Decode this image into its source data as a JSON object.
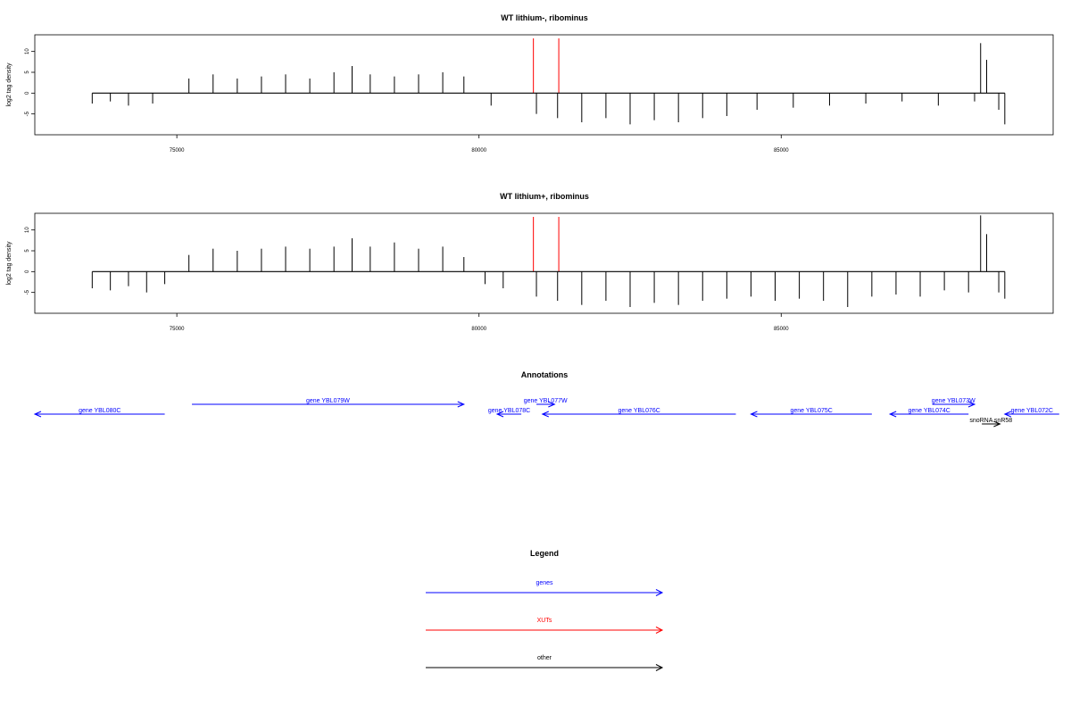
{
  "chart_data": [
    {
      "type": "bar",
      "title": "WT lithium-, ribominus",
      "xlabel": "",
      "ylabel": "log2 tag density",
      "xlim": [
        72650,
        89500
      ],
      "ylim": [
        -10,
        14
      ],
      "xticks": [
        75000,
        80000,
        85000
      ],
      "yticks": [
        -5,
        0,
        5,
        10
      ],
      "grid": false,
      "markers": [
        80900,
        81320
      ],
      "series": [
        {
          "values": [
            [
              73600,
              -2.5
            ],
            [
              73900,
              -2
            ],
            [
              74200,
              -3
            ],
            [
              74600,
              -2.5
            ],
            [
              75200,
              3.5
            ],
            [
              75600,
              4.5
            ],
            [
              76000,
              3.5
            ],
            [
              76400,
              4
            ],
            [
              76800,
              4.5
            ],
            [
              77200,
              3.5
            ],
            [
              77600,
              5
            ],
            [
              77900,
              6.5
            ],
            [
              78200,
              4.5
            ],
            [
              78600,
              4
            ],
            [
              79000,
              4.5
            ],
            [
              79400,
              5
            ],
            [
              79750,
              4
            ],
            [
              80200,
              -3
            ],
            [
              80950,
              -5
            ],
            [
              81300,
              -6
            ],
            [
              81700,
              -7
            ],
            [
              82100,
              -6
            ],
            [
              82500,
              -7.5
            ],
            [
              82900,
              -6.5
            ],
            [
              83300,
              -7
            ],
            [
              83700,
              -6
            ],
            [
              84100,
              -5.5
            ],
            [
              84600,
              -4
            ],
            [
              85200,
              -3.5
            ],
            [
              85800,
              -3
            ],
            [
              86400,
              -2.5
            ],
            [
              87000,
              -2
            ],
            [
              87600,
              -3
            ],
            [
              88200,
              -2
            ],
            [
              88300,
              12
            ],
            [
              88400,
              8
            ],
            [
              88600,
              -4
            ],
            [
              88700,
              -7.5
            ]
          ]
        }
      ]
    },
    {
      "type": "bar",
      "title": "WT lithium+, ribominus",
      "xlabel": "",
      "ylabel": "log2 tag density",
      "xlim": [
        72650,
        89500
      ],
      "ylim": [
        -10,
        14
      ],
      "xticks": [
        75000,
        80000,
        85000
      ],
      "yticks": [
        -5,
        0,
        5,
        10
      ],
      "grid": false,
      "markers": [
        80900,
        81320
      ],
      "series": [
        {
          "values": [
            [
              73600,
              -4
            ],
            [
              73900,
              -4.5
            ],
            [
              74200,
              -3.5
            ],
            [
              74500,
              -5
            ],
            [
              74800,
              -3
            ],
            [
              75200,
              4
            ],
            [
              75600,
              5.5
            ],
            [
              76000,
              5
            ],
            [
              76400,
              5.5
            ],
            [
              76800,
              6
            ],
            [
              77200,
              5.5
            ],
            [
              77600,
              6
            ],
            [
              77900,
              8
            ],
            [
              78200,
              6
            ],
            [
              78600,
              7
            ],
            [
              79000,
              5.5
            ],
            [
              79400,
              6
            ],
            [
              79750,
              3.5
            ],
            [
              80100,
              -3
            ],
            [
              80400,
              -4
            ],
            [
              80950,
              -6
            ],
            [
              81300,
              -7
            ],
            [
              81700,
              -8
            ],
            [
              82100,
              -7
            ],
            [
              82500,
              -8.5
            ],
            [
              82900,
              -7.5
            ],
            [
              83300,
              -8
            ],
            [
              83700,
              -7
            ],
            [
              84100,
              -6.5
            ],
            [
              84500,
              -6
            ],
            [
              84900,
              -7
            ],
            [
              85300,
              -6.5
            ],
            [
              85700,
              -7
            ],
            [
              86100,
              -8.5
            ],
            [
              86500,
              -6
            ],
            [
              86900,
              -5.5
            ],
            [
              87300,
              -6
            ],
            [
              87700,
              -4.5
            ],
            [
              88100,
              -5
            ],
            [
              88300,
              13.5
            ],
            [
              88400,
              9
            ],
            [
              88600,
              -5
            ],
            [
              88700,
              -6.5
            ]
          ]
        }
      ]
    }
  ],
  "annotations": {
    "title": "Annotations",
    "features": [
      {
        "label": "gene YBL080C",
        "start": 72650,
        "end": 74800,
        "strand": "-",
        "row": 1,
        "kind": "genes"
      },
      {
        "label": "gene YBL079W",
        "start": 75250,
        "end": 79750,
        "strand": "+",
        "row": 0,
        "kind": "genes"
      },
      {
        "label": "gene YBL078C",
        "start": 80300,
        "end": 80700,
        "strand": "-",
        "row": 1,
        "kind": "genes"
      },
      {
        "label": "gene YBL077W",
        "start": 80950,
        "end": 81250,
        "strand": "+",
        "row": 0,
        "kind": "genes"
      },
      {
        "label": "gene YBL076C",
        "start": 81050,
        "end": 84250,
        "strand": "-",
        "row": 1,
        "kind": "genes"
      },
      {
        "label": "gene YBL075C",
        "start": 84500,
        "end": 86500,
        "strand": "-",
        "row": 1,
        "kind": "genes"
      },
      {
        "label": "gene YBL074C",
        "start": 86800,
        "end": 88100,
        "strand": "-",
        "row": 1,
        "kind": "genes"
      },
      {
        "label": "gene YBL073W",
        "start": 87500,
        "end": 88200,
        "strand": "+",
        "row": 0,
        "kind": "genes"
      },
      {
        "label": "gene YBL072C",
        "start": 88700,
        "end": 89600,
        "strand": "-",
        "row": 1,
        "kind": "genes"
      },
      {
        "label": "snoRNA snR58",
        "start": 88320,
        "end": 88620,
        "strand": "+",
        "row": 2,
        "kind": "other"
      }
    ]
  },
  "legend": {
    "title": "Legend",
    "items": [
      {
        "label": "genes",
        "color": "#0000ff"
      },
      {
        "label": "XUTs",
        "color": "#ff0000"
      },
      {
        "label": "other",
        "color": "#000000"
      }
    ]
  },
  "colors": {
    "genes": "#0000ff",
    "XUTs": "#ff0000",
    "other": "#000000",
    "marker": "#ff0000",
    "signal": "#000000"
  }
}
